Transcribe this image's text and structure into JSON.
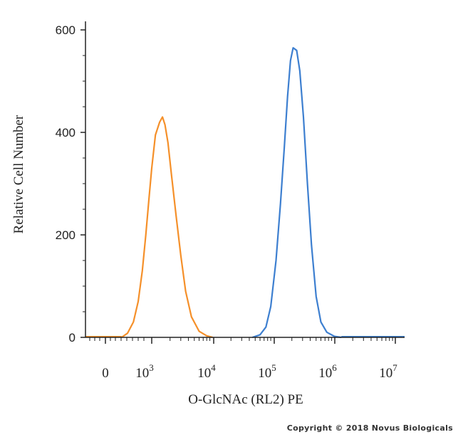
{
  "chart_data": {
    "type": "line",
    "xlabel": "O-GlcNAc (RL2) PE",
    "ylabel": "Relative Cell Number",
    "x_scale": "log",
    "ylim": [
      0,
      600
    ],
    "y_ticks": [
      {
        "value": 0,
        "label": "0"
      },
      {
        "value": 200,
        "label": "200"
      },
      {
        "value": 400,
        "label": "400"
      },
      {
        "value": 600,
        "label": "600"
      }
    ],
    "x_ticks": [
      {
        "value": 0,
        "base": "0",
        "exp": ""
      },
      {
        "value": 1000,
        "base": "10",
        "exp": "3"
      },
      {
        "value": 10000,
        "base": "10",
        "exp": "4"
      },
      {
        "value": 100000,
        "base": "10",
        "exp": "5"
      },
      {
        "value": 1000000,
        "base": "10",
        "exp": "6"
      },
      {
        "value": 10000000,
        "base": "10",
        "exp": "7"
      }
    ],
    "grid": false,
    "series": [
      {
        "color": "#f5902a",
        "points": [
          [
            320,
            0
          ],
          [
            400,
            8
          ],
          [
            500,
            30
          ],
          [
            600,
            70
          ],
          [
            700,
            130
          ],
          [
            800,
            200
          ],
          [
            900,
            270
          ],
          [
            1000,
            330
          ],
          [
            1150,
            395
          ],
          [
            1350,
            420
          ],
          [
            1500,
            430
          ],
          [
            1650,
            415
          ],
          [
            1850,
            380
          ],
          [
            2100,
            320
          ],
          [
            2500,
            240
          ],
          [
            3000,
            160
          ],
          [
            3600,
            90
          ],
          [
            4500,
            40
          ],
          [
            6000,
            12
          ],
          [
            8000,
            3
          ],
          [
            10000,
            0
          ]
        ]
      },
      {
        "color": "#3d7fd0",
        "points": [
          [
            45000,
            0
          ],
          [
            60000,
            5
          ],
          [
            75000,
            20
          ],
          [
            90000,
            60
          ],
          [
            110000,
            150
          ],
          [
            130000,
            260
          ],
          [
            150000,
            370
          ],
          [
            170000,
            470
          ],
          [
            190000,
            540
          ],
          [
            210000,
            565
          ],
          [
            240000,
            560
          ],
          [
            270000,
            520
          ],
          [
            310000,
            430
          ],
          [
            360000,
            300
          ],
          [
            420000,
            180
          ],
          [
            500000,
            80
          ],
          [
            600000,
            30
          ],
          [
            750000,
            10
          ],
          [
            1000000,
            2
          ],
          [
            1300000,
            0
          ]
        ]
      }
    ]
  },
  "footer": {
    "copyright": "Copyright © 2018 Novus Biologicals"
  }
}
